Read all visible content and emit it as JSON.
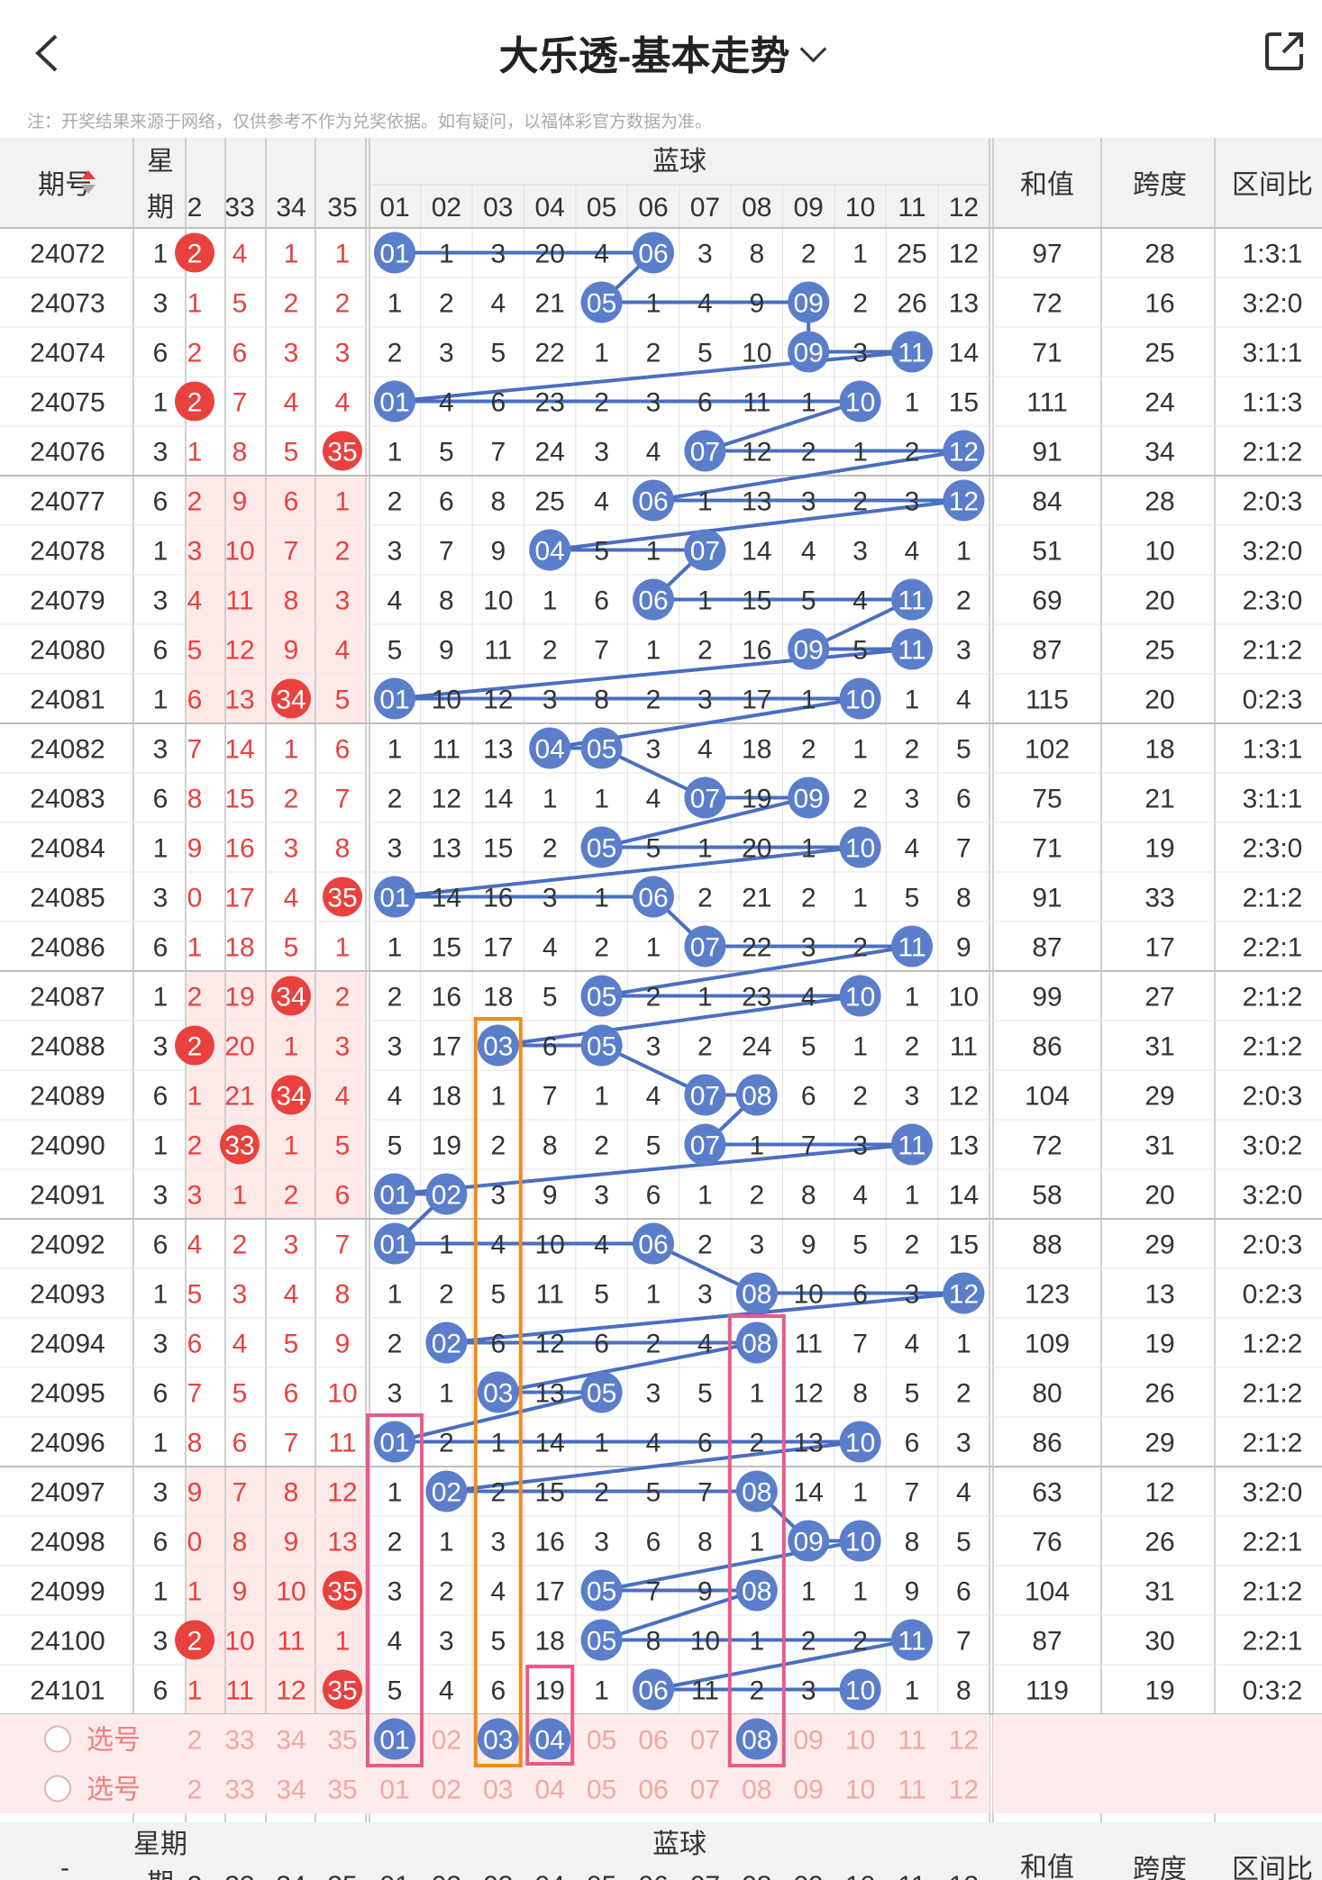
{
  "header": {
    "title": "大乐透-基本走势",
    "back_icon": "chevron-left-icon",
    "share_icon": "share-external-icon"
  },
  "notice": "注：开奖结果来源于网络，仅供参考不作为兑奖依据。如有疑问，以福体彩官方数据为准。",
  "table": {
    "col_issue": "期号",
    "col_week": "星期",
    "section_blue": "蓝球",
    "col_sum": "和值",
    "col_span": "跨度",
    "col_ratio": "区间比",
    "red_cols_visible": [
      "2",
      "33",
      "34",
      "35"
    ],
    "blue_cols": [
      "01",
      "02",
      "03",
      "04",
      "05",
      "06",
      "07",
      "08",
      "09",
      "10",
      "11",
      "12"
    ],
    "rows": [
      {
        "issue": "24072",
        "week": "1",
        "red": [
          "2",
          "4",
          "1",
          "1"
        ],
        "redHit": [
          0
        ],
        "blue": [
          "01",
          "1",
          "3",
          "20",
          "4",
          "06",
          "3",
          "8",
          "2",
          "1",
          "25",
          "12"
        ],
        "blueHit": [
          0,
          5
        ],
        "sum": "97",
        "span": "28",
        "ratio": "1:3:1"
      },
      {
        "issue": "24073",
        "week": "3",
        "red": [
          "1",
          "5",
          "2",
          "2"
        ],
        "redHit": [],
        "blue": [
          "1",
          "2",
          "4",
          "21",
          "05",
          "1",
          "4",
          "9",
          "09",
          "2",
          "26",
          "13"
        ],
        "blueHit": [
          4,
          8
        ],
        "sum": "72",
        "span": "16",
        "ratio": "3:2:0"
      },
      {
        "issue": "24074",
        "week": "6",
        "red": [
          "2",
          "6",
          "3",
          "3"
        ],
        "redHit": [],
        "blue": [
          "2",
          "3",
          "5",
          "22",
          "1",
          "2",
          "5",
          "10",
          "09",
          "3",
          "11",
          "14"
        ],
        "blueHit": [
          8,
          10
        ],
        "sum": "71",
        "span": "25",
        "ratio": "3:1:1"
      },
      {
        "issue": "24075",
        "week": "1",
        "red": [
          "2",
          "7",
          "4",
          "4"
        ],
        "redHit": [
          0
        ],
        "blue": [
          "01",
          "4",
          "6",
          "23",
          "2",
          "3",
          "6",
          "11",
          "1",
          "10",
          "1",
          "15"
        ],
        "blueHit": [
          0,
          9
        ],
        "sum": "111",
        "span": "24",
        "ratio": "1:1:3"
      },
      {
        "issue": "24076",
        "week": "3",
        "red": [
          "1",
          "8",
          "5",
          "35"
        ],
        "redHit": [
          3
        ],
        "blue": [
          "1",
          "5",
          "7",
          "24",
          "3",
          "4",
          "07",
          "12",
          "2",
          "1",
          "2",
          "12"
        ],
        "blueHit": [
          6,
          11
        ],
        "sum": "91",
        "span": "34",
        "ratio": "2:1:2"
      },
      {
        "issue": "24077",
        "week": "6",
        "red": [
          "2",
          "9",
          "6",
          "1"
        ],
        "redHit": [],
        "blue": [
          "2",
          "6",
          "8",
          "25",
          "4",
          "06",
          "1",
          "13",
          "3",
          "2",
          "3",
          "12"
        ],
        "blueHit": [
          5,
          11
        ],
        "sum": "84",
        "span": "28",
        "ratio": "2:0:3"
      },
      {
        "issue": "24078",
        "week": "1",
        "red": [
          "3",
          "10",
          "7",
          "2"
        ],
        "redHit": [],
        "blue": [
          "3",
          "7",
          "9",
          "04",
          "5",
          "1",
          "07",
          "14",
          "4",
          "3",
          "4",
          "1"
        ],
        "blueHit": [
          3,
          6
        ],
        "sum": "51",
        "span": "10",
        "ratio": "3:2:0"
      },
      {
        "issue": "24079",
        "week": "3",
        "red": [
          "4",
          "11",
          "8",
          "3"
        ],
        "redHit": [],
        "blue": [
          "4",
          "8",
          "10",
          "1",
          "6",
          "06",
          "1",
          "15",
          "5",
          "4",
          "11",
          "2"
        ],
        "blueHit": [
          5,
          10
        ],
        "sum": "69",
        "span": "20",
        "ratio": "2:3:0"
      },
      {
        "issue": "24080",
        "week": "6",
        "red": [
          "5",
          "12",
          "9",
          "4"
        ],
        "redHit": [],
        "blue": [
          "5",
          "9",
          "11",
          "2",
          "7",
          "1",
          "2",
          "16",
          "09",
          "5",
          "11",
          "3"
        ],
        "blueHit": [
          8,
          10
        ],
        "sum": "87",
        "span": "25",
        "ratio": "2:1:2"
      },
      {
        "issue": "24081",
        "week": "1",
        "red": [
          "6",
          "13",
          "34",
          "5"
        ],
        "redHit": [
          2
        ],
        "blue": [
          "01",
          "10",
          "12",
          "3",
          "8",
          "2",
          "3",
          "17",
          "1",
          "10",
          "1",
          "4"
        ],
        "blueHit": [
          0,
          9
        ],
        "sum": "115",
        "span": "20",
        "ratio": "0:2:3"
      },
      {
        "issue": "24082",
        "week": "3",
        "red": [
          "7",
          "14",
          "1",
          "6"
        ],
        "redHit": [],
        "blue": [
          "1",
          "11",
          "13",
          "04",
          "05",
          "3",
          "4",
          "18",
          "2",
          "1",
          "2",
          "5"
        ],
        "blueHit": [
          3,
          4
        ],
        "sum": "102",
        "span": "18",
        "ratio": "1:3:1"
      },
      {
        "issue": "24083",
        "week": "6",
        "red": [
          "8",
          "15",
          "2",
          "7"
        ],
        "redHit": [],
        "blue": [
          "2",
          "12",
          "14",
          "1",
          "1",
          "4",
          "07",
          "19",
          "09",
          "2",
          "3",
          "6"
        ],
        "blueHit": [
          6,
          8
        ],
        "sum": "75",
        "span": "21",
        "ratio": "3:1:1"
      },
      {
        "issue": "24084",
        "week": "1",
        "red": [
          "9",
          "16",
          "3",
          "8"
        ],
        "redHit": [],
        "blue": [
          "3",
          "13",
          "15",
          "2",
          "05",
          "5",
          "1",
          "20",
          "1",
          "10",
          "4",
          "7"
        ],
        "blueHit": [
          4,
          9
        ],
        "sum": "71",
        "span": "19",
        "ratio": "2:3:0"
      },
      {
        "issue": "24085",
        "week": "3",
        "red": [
          "0",
          "17",
          "4",
          "35"
        ],
        "redHit": [
          3
        ],
        "blue": [
          "01",
          "14",
          "16",
          "3",
          "1",
          "06",
          "2",
          "21",
          "2",
          "1",
          "5",
          "8"
        ],
        "blueHit": [
          0,
          5
        ],
        "sum": "91",
        "span": "33",
        "ratio": "2:1:2"
      },
      {
        "issue": "24086",
        "week": "6",
        "red": [
          "1",
          "18",
          "5",
          "1"
        ],
        "redHit": [],
        "blue": [
          "1",
          "15",
          "17",
          "4",
          "2",
          "1",
          "07",
          "22",
          "3",
          "2",
          "11",
          "9"
        ],
        "blueHit": [
          6,
          10
        ],
        "sum": "87",
        "span": "17",
        "ratio": "2:2:1"
      },
      {
        "issue": "24087",
        "week": "1",
        "red": [
          "2",
          "19",
          "34",
          "2"
        ],
        "redHit": [
          2
        ],
        "blue": [
          "2",
          "16",
          "18",
          "5",
          "05",
          "2",
          "1",
          "23",
          "4",
          "10",
          "1",
          "10"
        ],
        "blueHit": [
          4,
          9
        ],
        "sum": "99",
        "span": "27",
        "ratio": "2:1:2"
      },
      {
        "issue": "24088",
        "week": "3",
        "red": [
          "2",
          "20",
          "1",
          "3"
        ],
        "redHit": [
          0
        ],
        "blue": [
          "3",
          "17",
          "03",
          "6",
          "05",
          "3",
          "2",
          "24",
          "5",
          "1",
          "2",
          "11"
        ],
        "blueHit": [
          2,
          4
        ],
        "sum": "86",
        "span": "31",
        "ratio": "2:1:2"
      },
      {
        "issue": "24089",
        "week": "6",
        "red": [
          "1",
          "21",
          "34",
          "4"
        ],
        "redHit": [
          2
        ],
        "blue": [
          "4",
          "18",
          "1",
          "7",
          "1",
          "4",
          "07",
          "08",
          "6",
          "2",
          "3",
          "12"
        ],
        "blueHit": [
          6,
          7
        ],
        "sum": "104",
        "span": "29",
        "ratio": "2:0:3"
      },
      {
        "issue": "24090",
        "week": "1",
        "red": [
          "2",
          "33",
          "1",
          "5"
        ],
        "redHit": [
          1
        ],
        "blue": [
          "5",
          "19",
          "2",
          "8",
          "2",
          "5",
          "07",
          "1",
          "7",
          "3",
          "11",
          "13"
        ],
        "blueHit": [
          6,
          10
        ],
        "sum": "72",
        "span": "31",
        "ratio": "3:0:2"
      },
      {
        "issue": "24091",
        "week": "3",
        "red": [
          "3",
          "1",
          "2",
          "6"
        ],
        "redHit": [],
        "blue": [
          "01",
          "02",
          "3",
          "9",
          "3",
          "6",
          "1",
          "2",
          "8",
          "4",
          "1",
          "14"
        ],
        "blueHit": [
          0,
          1
        ],
        "sum": "58",
        "span": "20",
        "ratio": "3:2:0"
      },
      {
        "issue": "24092",
        "week": "6",
        "red": [
          "4",
          "2",
          "3",
          "7"
        ],
        "redHit": [],
        "blue": [
          "01",
          "1",
          "4",
          "10",
          "4",
          "06",
          "2",
          "3",
          "9",
          "5",
          "2",
          "15"
        ],
        "blueHit": [
          0,
          5
        ],
        "sum": "88",
        "span": "29",
        "ratio": "2:0:3"
      },
      {
        "issue": "24093",
        "week": "1",
        "red": [
          "5",
          "3",
          "4",
          "8"
        ],
        "redHit": [],
        "blue": [
          "1",
          "2",
          "5",
          "11",
          "5",
          "1",
          "3",
          "08",
          "10",
          "6",
          "3",
          "12"
        ],
        "blueHit": [
          7,
          11
        ],
        "sum": "123",
        "span": "13",
        "ratio": "0:2:3"
      },
      {
        "issue": "24094",
        "week": "3",
        "red": [
          "6",
          "4",
          "5",
          "9"
        ],
        "redHit": [],
        "blue": [
          "2",
          "02",
          "6",
          "12",
          "6",
          "2",
          "4",
          "08",
          "11",
          "7",
          "4",
          "1"
        ],
        "blueHit": [
          1,
          7
        ],
        "sum": "109",
        "span": "19",
        "ratio": "1:2:2"
      },
      {
        "issue": "24095",
        "week": "6",
        "red": [
          "7",
          "5",
          "6",
          "10"
        ],
        "redHit": [],
        "blue": [
          "3",
          "1",
          "03",
          "13",
          "05",
          "3",
          "5",
          "1",
          "12",
          "8",
          "5",
          "2"
        ],
        "blueHit": [
          2,
          4
        ],
        "sum": "80",
        "span": "26",
        "ratio": "2:1:2"
      },
      {
        "issue": "24096",
        "week": "1",
        "red": [
          "8",
          "6",
          "7",
          "11"
        ],
        "redHit": [],
        "blue": [
          "01",
          "2",
          "1",
          "14",
          "1",
          "4",
          "6",
          "2",
          "13",
          "10",
          "6",
          "3"
        ],
        "blueHit": [
          0,
          9
        ],
        "sum": "86",
        "span": "29",
        "ratio": "2:1:2"
      },
      {
        "issue": "24097",
        "week": "3",
        "red": [
          "9",
          "7",
          "8",
          "12"
        ],
        "redHit": [],
        "blue": [
          "1",
          "02",
          "2",
          "15",
          "2",
          "5",
          "7",
          "08",
          "14",
          "1",
          "7",
          "4"
        ],
        "blueHit": [
          1,
          7
        ],
        "sum": "63",
        "span": "12",
        "ratio": "3:2:0"
      },
      {
        "issue": "24098",
        "week": "6",
        "red": [
          "0",
          "8",
          "9",
          "13"
        ],
        "redHit": [],
        "blue": [
          "2",
          "1",
          "3",
          "16",
          "3",
          "6",
          "8",
          "1",
          "09",
          "10",
          "8",
          "5"
        ],
        "blueHit": [
          8,
          9
        ],
        "sum": "76",
        "span": "26",
        "ratio": "2:2:1"
      },
      {
        "issue": "24099",
        "week": "1",
        "red": [
          "1",
          "9",
          "10",
          "35"
        ],
        "redHit": [
          3
        ],
        "blue": [
          "3",
          "2",
          "4",
          "17",
          "05",
          "7",
          "9",
          "08",
          "1",
          "1",
          "9",
          "6"
        ],
        "blueHit": [
          4,
          7
        ],
        "sum": "104",
        "span": "31",
        "ratio": "2:1:2"
      },
      {
        "issue": "24100",
        "week": "3",
        "red": [
          "2",
          "10",
          "11",
          "1"
        ],
        "redHit": [
          0
        ],
        "blue": [
          "4",
          "3",
          "5",
          "18",
          "05",
          "8",
          "10",
          "1",
          "2",
          "2",
          "11",
          "7"
        ],
        "blueHit": [
          4,
          10
        ],
        "sum": "87",
        "span": "30",
        "ratio": "2:2:1"
      },
      {
        "issue": "24101",
        "week": "6",
        "red": [
          "1",
          "11",
          "12",
          "35"
        ],
        "redHit": [
          3
        ],
        "blue": [
          "5",
          "4",
          "6",
          "19",
          "1",
          "06",
          "11",
          "2",
          "3",
          "10",
          "1",
          "8"
        ],
        "blueHit": [
          5,
          9
        ],
        "sum": "119",
        "span": "19",
        "ratio": "0:3:2"
      }
    ],
    "select_rows": [
      {
        "label": "选号",
        "red": [
          "2",
          "33",
          "34",
          "35"
        ],
        "blue": [
          "01",
          "02",
          "03",
          "04",
          "05",
          "06",
          "07",
          "08",
          "09",
          "10",
          "11",
          "12"
        ],
        "selected": [
          0,
          2,
          3,
          7
        ]
      },
      {
        "label": "选号",
        "red": [
          "2",
          "33",
          "34",
          "35"
        ],
        "blue": [
          "01",
          "02",
          "03",
          "04",
          "05",
          "06",
          "07",
          "08",
          "09",
          "10",
          "11",
          "12"
        ],
        "selected": []
      }
    ],
    "footer_issue": "-",
    "footer_week": "星期",
    "footer_week2": "期",
    "footer_blue": "蓝球",
    "footer_sum": "和值",
    "footer_span": "跨度",
    "footer_ratio": "区间比"
  },
  "colors": {
    "red_ball": "#e8413e",
    "blue_ball": "#5b7ecb",
    "line": "#4a6fc1",
    "orange_box": "#f08c1a",
    "pink_box": "#e85a8a",
    "pink_bg": "#fdeceb"
  }
}
